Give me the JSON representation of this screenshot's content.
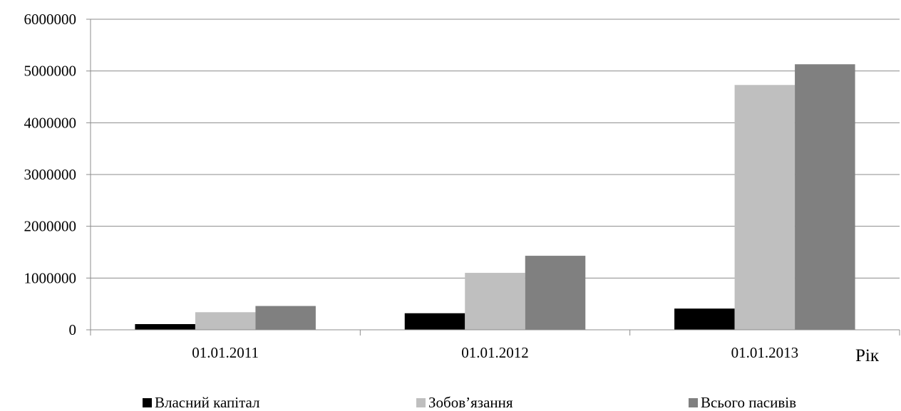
{
  "chart_data": {
    "type": "bar",
    "categories": [
      "01.01.2011",
      "01.01.2012",
      "01.01.2013"
    ],
    "series": [
      {
        "name": "Власний капітал",
        "color": "#000000",
        "values": [
          110000,
          320000,
          410000
        ]
      },
      {
        "name": "Зобов’язання",
        "color": "#bfbfbf",
        "values": [
          340000,
          1100000,
          4730000
        ]
      },
      {
        "name": "Всього пасивів",
        "color": "#808080",
        "values": [
          460000,
          1430000,
          5130000
        ]
      }
    ],
    "xlabel": "Рік",
    "ylabel": "",
    "ylim": [
      0,
      6000000
    ],
    "yticks": [
      "0",
      "1000000",
      "2000000",
      "3000000",
      "4000000",
      "5000000",
      "6000000"
    ],
    "grid": true,
    "legend_position": "bottom"
  }
}
